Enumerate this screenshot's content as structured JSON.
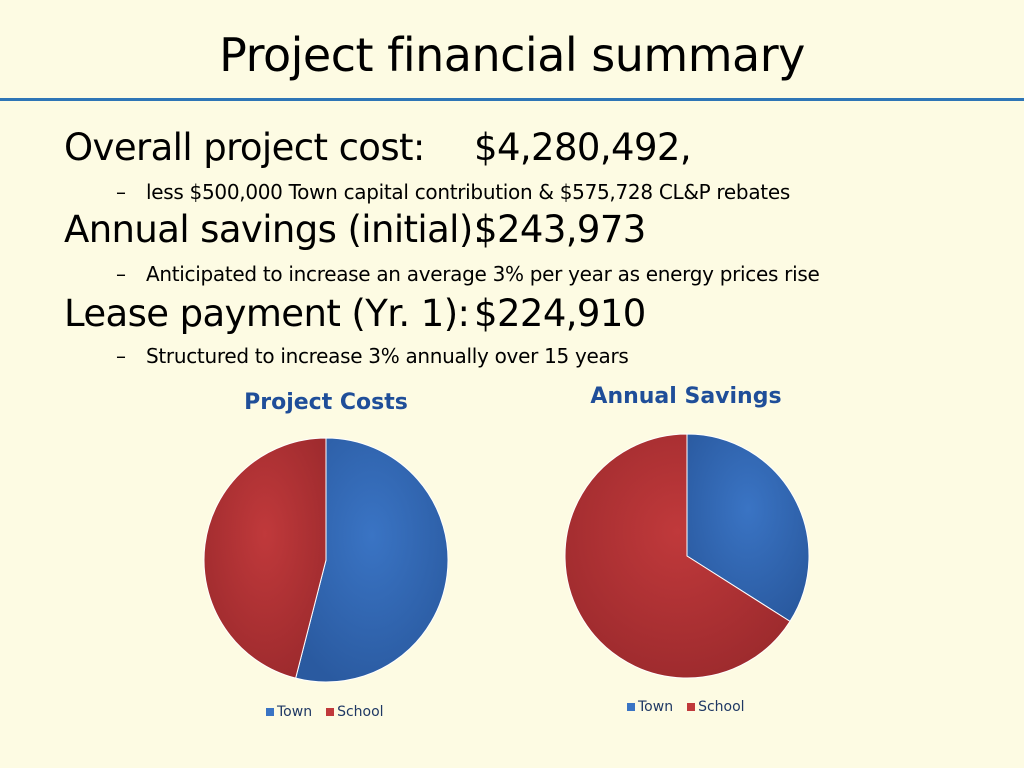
{
  "slide": {
    "title": "Project financial summary",
    "lines": [
      {
        "label": "Overall project cost:",
        "value": "$4,280,492,",
        "sub": "less $500,000 Town capital contribution & $575,728 CL&P rebates"
      },
      {
        "label": "Annual savings (initial):",
        "value": "$243,973",
        "sub": "Anticipated to increase an average 3% per year as energy prices rise"
      },
      {
        "label": "Lease payment (Yr. 1):",
        "value": "$224,910",
        "sub": "Structured to increase 3% annually over 15 years"
      }
    ],
    "dash": "–"
  },
  "colors": {
    "town": "#3a74c4",
    "school": "#c0393b",
    "rule": "#2e75b6",
    "chart_title": "#1f4e99"
  },
  "chart_data": [
    {
      "type": "pie",
      "title": "Project Costs",
      "categories": [
        "Town",
        "School"
      ],
      "values": [
        54,
        46
      ],
      "legend": "bottom"
    },
    {
      "type": "pie",
      "title": "Annual Savings",
      "categories": [
        "Town",
        "School"
      ],
      "values": [
        34,
        66
      ],
      "legend": "bottom"
    }
  ]
}
